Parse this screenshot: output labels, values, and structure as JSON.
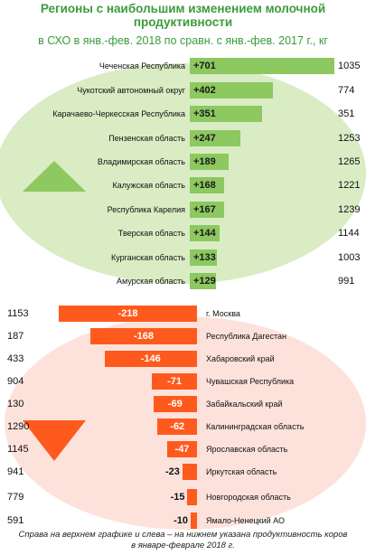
{
  "chart_data": [
    {
      "type": "bar",
      "title": "Регионы с наибольшим изменением молочной продуктивности",
      "subtitle": "в СХО в янв.-фев. 2018 по сравн. с янв.-фев. 2017 г., кг",
      "color": "#8dc860",
      "categories": [
        "Чеченская Республика",
        "Чукотский автономный округ",
        "Карачаево-Черкесская Республика",
        "Пензенская область",
        "Владимирская область",
        "Калужская область",
        "Республика Карелия",
        "Тверская область",
        "Курганская область",
        "Амурская область"
      ],
      "values": [
        701,
        402,
        351,
        247,
        189,
        168,
        167,
        144,
        133,
        129
      ],
      "value_labels": [
        "+701",
        "+402",
        "+351",
        "+247",
        "+189",
        "+168",
        "+167",
        "+144",
        "+133",
        "+129"
      ],
      "productivity": [
        1035,
        774,
        351,
        1253,
        1265,
        1221,
        1239,
        1144,
        1003,
        991
      ]
    },
    {
      "type": "bar",
      "color": "#ff5a1e",
      "note": "Справа на верхнем графике и слева – на нижнем указана продуктивность коров в январе-феврале 2018 г.",
      "categories": [
        "г. Москва",
        "Республика Дагестан",
        "Хабаровский край",
        "Чувашская Республика",
        "Забайкальский край",
        "Калининградская область",
        "Ярославская область",
        "Иркутская область",
        "Новгородская область",
        "Ямало-Ненецкий АО"
      ],
      "values": [
        -218,
        -168,
        -146,
        -71,
        -69,
        -62,
        -47,
        -23,
        -15,
        -10
      ],
      "productivity": [
        1153,
        187,
        433,
        904,
        130,
        1290,
        1145,
        941,
        779,
        591
      ]
    }
  ]
}
